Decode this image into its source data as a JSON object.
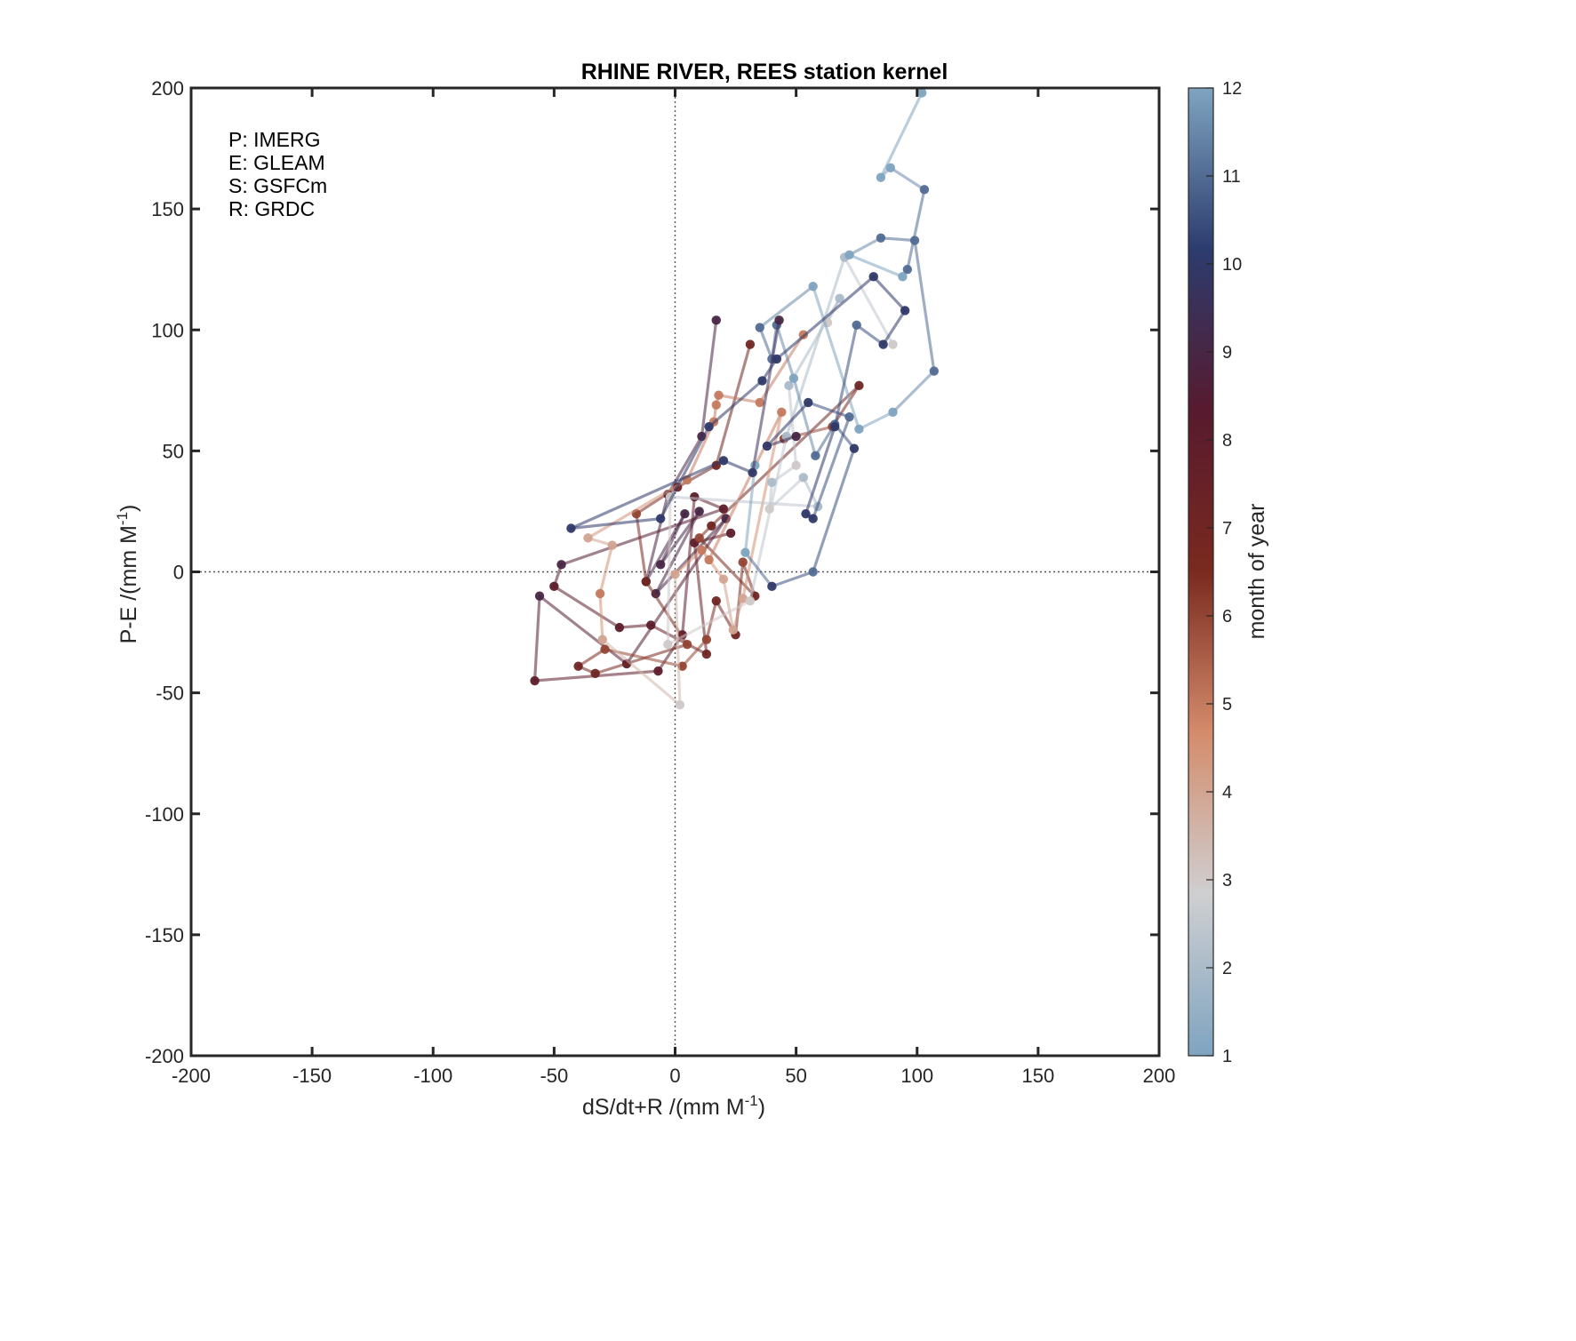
{
  "chart_data": {
    "type": "line",
    "title": "RHINE RIVER, REES station kernel",
    "xlabel": "dS/dt+R  /(mm M",
    "xlabel_sup": "-1",
    "xlabel_tail": ")",
    "ylabel": "P-E  /(mm M",
    "ylabel_sup": "-1",
    "ylabel_tail": ")",
    "xlim": [
      -200,
      200
    ],
    "ylim": [
      -200,
      200
    ],
    "xticks": [
      -200,
      -150,
      -100,
      -50,
      0,
      50,
      100,
      150,
      200
    ],
    "yticks": [
      -200,
      -150,
      -100,
      -50,
      0,
      50,
      100,
      150,
      200
    ],
    "grid": false,
    "reference_lines": "dotted lines at x=0 and y=0",
    "annotations": [
      "P: IMERG",
      "E: GLEAM",
      "S: GSFCm",
      "R: GRDC"
    ],
    "colorbar": {
      "label": "month of year",
      "ticks": [
        1,
        2,
        3,
        4,
        5,
        6,
        7,
        8,
        9,
        10,
        11,
        12
      ],
      "range": [
        1,
        12
      ],
      "colors": [
        "#7fa4c0",
        "#cfcfd1",
        "#d48c6c",
        "#7a2a1f",
        "#571a2e",
        "#2c3c6e",
        "#7fa4c0"
      ]
    },
    "series": [
      {
        "points": [
          {
            "x": 17,
            "y": 104,
            "m": 9
          },
          {
            "x": 11,
            "y": 56,
            "m": 9
          },
          {
            "x": -3,
            "y": 32,
            "m": 9
          },
          {
            "x": -12,
            "y": -4,
            "m": 9
          },
          {
            "x": 4,
            "y": 24,
            "m": 9
          },
          {
            "x": -6,
            "y": 3,
            "m": 9
          },
          {
            "x": 10,
            "y": 25,
            "m": 9
          },
          {
            "x": -8,
            "y": -9,
            "m": 9
          },
          {
            "x": 21,
            "y": 22,
            "m": 9
          },
          {
            "x": -20,
            "y": -38,
            "m": 8
          },
          {
            "x": -56,
            "y": -10,
            "m": 9
          },
          {
            "x": -58,
            "y": -45,
            "m": 8
          },
          {
            "x": -7,
            "y": -41,
            "m": 8
          },
          {
            "x": 3,
            "y": -26,
            "m": 8
          },
          {
            "x": 8,
            "y": 31,
            "m": 8
          },
          {
            "x": 20,
            "y": 26,
            "m": 8
          },
          {
            "x": -47,
            "y": 3,
            "m": 9
          },
          {
            "x": -50,
            "y": -6,
            "m": 8
          },
          {
            "x": -23,
            "y": -23,
            "m": 8
          },
          {
            "x": -10,
            "y": -22,
            "m": 8
          },
          {
            "x": 13,
            "y": -34,
            "m": 7
          },
          {
            "x": 8,
            "y": 12,
            "m": 8
          },
          {
            "x": 23,
            "y": 16,
            "m": 8
          }
        ]
      },
      {
        "points": [
          {
            "x": 31,
            "y": 94,
            "m": 7
          },
          {
            "x": 17,
            "y": 44,
            "m": 7
          },
          {
            "x": 1,
            "y": 35,
            "m": 7
          },
          {
            "x": -16,
            "y": 24,
            "m": 6
          },
          {
            "x": -12,
            "y": -4,
            "m": 7
          },
          {
            "x": 5,
            "y": -30,
            "m": 6
          },
          {
            "x": -33,
            "y": -42,
            "m": 7
          },
          {
            "x": -40,
            "y": -39,
            "m": 7
          },
          {
            "x": -29,
            "y": -32,
            "m": 6
          },
          {
            "x": 3,
            "y": -39,
            "m": 6
          },
          {
            "x": 13,
            "y": -28,
            "m": 6
          },
          {
            "x": 17,
            "y": -12,
            "m": 7
          },
          {
            "x": 25,
            "y": -26,
            "m": 7
          },
          {
            "x": 28,
            "y": 4,
            "m": 6
          },
          {
            "x": 33,
            "y": -10,
            "m": 7
          },
          {
            "x": 10,
            "y": 14,
            "m": 6
          },
          {
            "x": 15,
            "y": 19,
            "m": 7
          },
          {
            "x": 76,
            "y": 77,
            "m": 7
          },
          {
            "x": 65,
            "y": 60,
            "m": 6
          },
          {
            "x": 45,
            "y": 55,
            "m": 6
          }
        ]
      },
      {
        "points": [
          {
            "x": 53,
            "y": 98,
            "m": 5
          },
          {
            "x": 35,
            "y": 70,
            "m": 5
          },
          {
            "x": 18,
            "y": 73,
            "m": 5
          },
          {
            "x": 17,
            "y": 69,
            "m": 5
          },
          {
            "x": 16,
            "y": 62,
            "m": 5
          },
          {
            "x": 5,
            "y": 38,
            "m": 5
          },
          {
            "x": -36,
            "y": 14,
            "m": 4
          },
          {
            "x": -26,
            "y": 11,
            "m": 4
          },
          {
            "x": -31,
            "y": -9,
            "m": 5
          },
          {
            "x": -30,
            "y": -28,
            "m": 4
          },
          {
            "x": 2,
            "y": -55,
            "m": 3
          },
          {
            "x": 0,
            "y": -1,
            "m": 4
          },
          {
            "x": 11,
            "y": 9,
            "m": 5
          },
          {
            "x": 20,
            "y": -3,
            "m": 4
          },
          {
            "x": 24,
            "y": -24,
            "m": 4
          },
          {
            "x": 28,
            "y": -11,
            "m": 4
          },
          {
            "x": 44,
            "y": 66,
            "m": 5
          },
          {
            "x": 14,
            "y": 5,
            "m": 5
          }
        ]
      },
      {
        "points": [
          {
            "x": 63,
            "y": 103,
            "m": 3
          },
          {
            "x": 68,
            "y": 113,
            "m": 2
          },
          {
            "x": 47,
            "y": 77,
            "m": 2
          },
          {
            "x": 50,
            "y": 44,
            "m": 3
          },
          {
            "x": 40,
            "y": 37,
            "m": 2
          },
          {
            "x": 39,
            "y": 26,
            "m": 3
          },
          {
            "x": 53,
            "y": 39,
            "m": 2
          },
          {
            "x": 59,
            "y": 27,
            "m": 2
          },
          {
            "x": -2,
            "y": 31,
            "m": 3
          },
          {
            "x": -3,
            "y": -30,
            "m": 3
          },
          {
            "x": 31,
            "y": -12,
            "m": 3
          },
          {
            "x": 46,
            "y": 56,
            "m": 2
          },
          {
            "x": 70,
            "y": 130,
            "m": 2
          },
          {
            "x": 90,
            "y": 94,
            "m": 3
          }
        ]
      },
      {
        "points": [
          {
            "x": 102,
            "y": 198,
            "m": 12
          },
          {
            "x": 85,
            "y": 163,
            "m": 12
          },
          {
            "x": 89,
            "y": 167,
            "m": 12
          },
          {
            "x": 103,
            "y": 158,
            "m": 11
          },
          {
            "x": 96,
            "y": 125,
            "m": 11
          },
          {
            "x": 94,
            "y": 122,
            "m": 12
          },
          {
            "x": 72,
            "y": 131,
            "m": 12
          },
          {
            "x": 85,
            "y": 138,
            "m": 11
          },
          {
            "x": 99,
            "y": 137,
            "m": 11
          },
          {
            "x": 107,
            "y": 83,
            "m": 11
          },
          {
            "x": 90,
            "y": 66,
            "m": 12
          },
          {
            "x": 76,
            "y": 59,
            "m": 12
          },
          {
            "x": 57,
            "y": 118,
            "m": 12
          },
          {
            "x": 35,
            "y": 101,
            "m": 11
          },
          {
            "x": 40,
            "y": 88,
            "m": 11
          },
          {
            "x": 42,
            "y": 102,
            "m": 11
          },
          {
            "x": 49,
            "y": 80,
            "m": 12
          },
          {
            "x": 58,
            "y": 48,
            "m": 11
          },
          {
            "x": 66,
            "y": 61,
            "m": 11
          },
          {
            "x": 74,
            "y": 51,
            "m": 10
          },
          {
            "x": 57,
            "y": 0,
            "m": 11
          },
          {
            "x": 40,
            "y": -6,
            "m": 10
          },
          {
            "x": 29,
            "y": 8,
            "m": 12
          },
          {
            "x": 33,
            "y": 44,
            "m": 12
          }
        ]
      },
      {
        "points": [
          {
            "x": 43,
            "y": 104,
            "m": 9
          },
          {
            "x": 32,
            "y": 41,
            "m": 10
          },
          {
            "x": 20,
            "y": 46,
            "m": 10
          },
          {
            "x": -43,
            "y": 18,
            "m": 10
          },
          {
            "x": -6,
            "y": 22,
            "m": 10
          },
          {
            "x": 14,
            "y": 60,
            "m": 10
          },
          {
            "x": 36,
            "y": 79,
            "m": 10
          },
          {
            "x": 42,
            "y": 88,
            "m": 10
          },
          {
            "x": 82,
            "y": 122,
            "m": 10
          },
          {
            "x": 95,
            "y": 108,
            "m": 10
          },
          {
            "x": 86,
            "y": 94,
            "m": 10
          },
          {
            "x": 75,
            "y": 102,
            "m": 11
          },
          {
            "x": 66,
            "y": 60,
            "m": 10
          },
          {
            "x": 54,
            "y": 24,
            "m": 10
          },
          {
            "x": 57,
            "y": 22,
            "m": 10
          },
          {
            "x": 72,
            "y": 64,
            "m": 11
          },
          {
            "x": 55,
            "y": 70,
            "m": 10
          },
          {
            "x": 38,
            "y": 52,
            "m": 10
          },
          {
            "x": 50,
            "y": 56,
            "m": 9
          }
        ]
      }
    ]
  }
}
